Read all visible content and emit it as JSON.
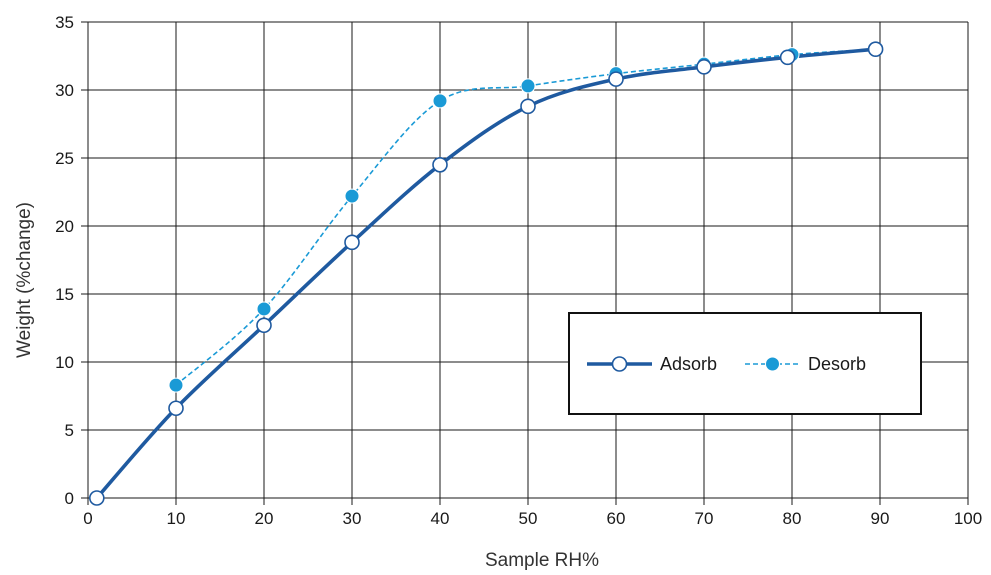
{
  "chart_data": {
    "type": "line",
    "xlabel": "Sample RH%",
    "ylabel": "Weight (%change)",
    "xlim": [
      0,
      100
    ],
    "ylim": [
      0,
      35
    ],
    "x_ticks": [
      0,
      10,
      20,
      30,
      40,
      50,
      60,
      70,
      80,
      90,
      100
    ],
    "y_ticks": [
      0,
      5,
      10,
      15,
      20,
      25,
      30,
      35
    ],
    "grid": true,
    "legend_position": "center-right",
    "series": [
      {
        "name": "Adsorb",
        "color": "#1f5aa0",
        "line_style": "solid",
        "marker": "hollow-circle",
        "x": [
          1,
          10,
          20,
          30,
          40,
          50,
          60,
          70,
          79.5,
          89.5
        ],
        "y": [
          0.0,
          6.6,
          12.7,
          18.8,
          24.5,
          28.8,
          30.8,
          31.7,
          32.4,
          33.0
        ]
      },
      {
        "name": "Desorb",
        "color": "#1a9ad6",
        "line_style": "dashed",
        "marker": "filled-circle",
        "x": [
          10,
          20,
          30,
          40,
          50,
          60,
          70,
          80,
          89.5
        ],
        "y": [
          8.3,
          13.9,
          22.2,
          29.2,
          30.3,
          31.2,
          31.9,
          32.6,
          33.0
        ]
      }
    ]
  }
}
